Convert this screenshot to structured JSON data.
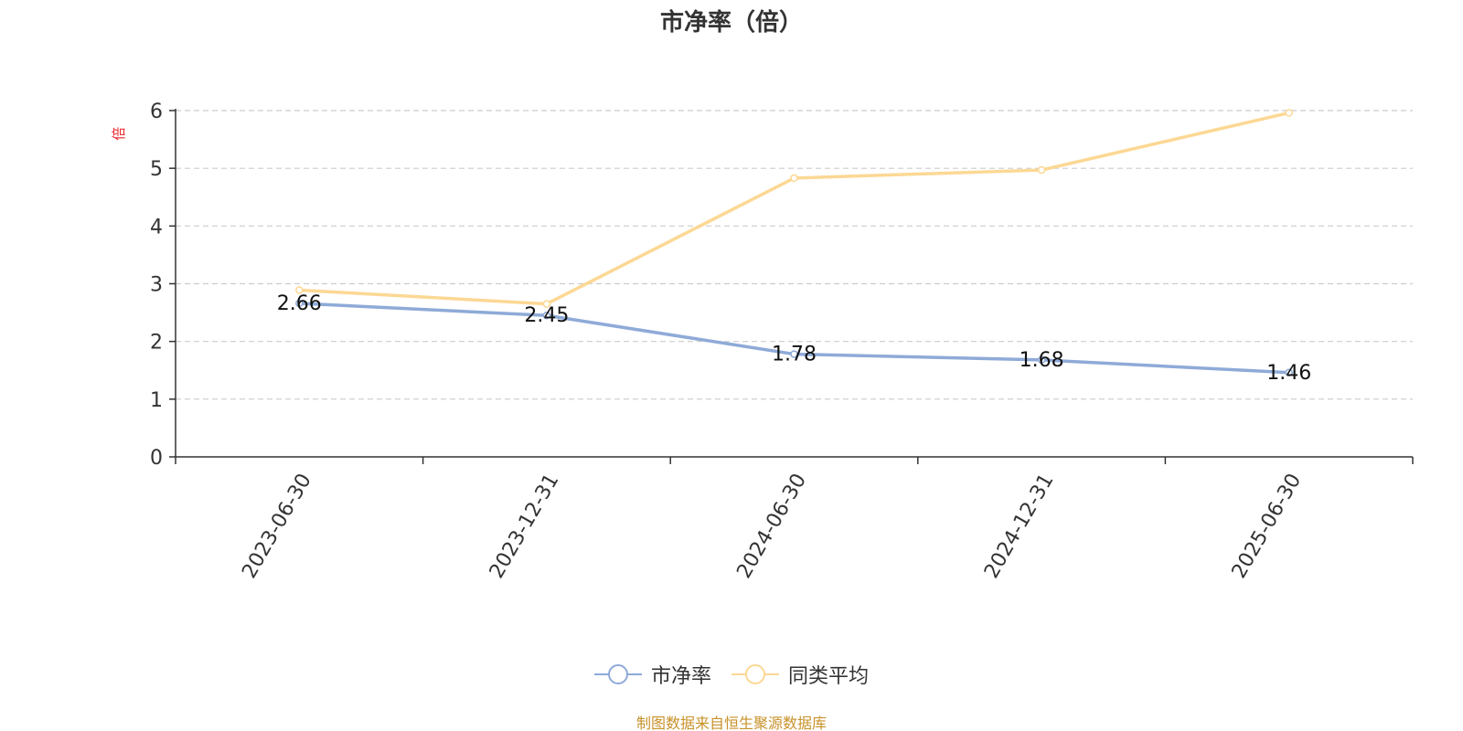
{
  "chart_data": {
    "type": "line",
    "title": "市净率（倍）",
    "ylabel": "倍",
    "xlabel": "",
    "categories": [
      "2023-06-30",
      "2023-12-31",
      "2024-06-30",
      "2024-12-31",
      "2025-06-30"
    ],
    "ylim": [
      0,
      6
    ],
    "yticks": [
      0,
      1,
      2,
      3,
      4,
      5,
      6
    ],
    "grid": true,
    "legend_position": "bottom-center",
    "series": [
      {
        "name": "市净率",
        "values": [
          2.66,
          2.45,
          1.78,
          1.68,
          1.46
        ],
        "color": "#8eaad8",
        "data_labels": [
          "2.66",
          "2.45",
          "1.78",
          "1.68",
          "1.46"
        ]
      },
      {
        "name": "同类平均",
        "values": [
          2.89,
          2.65,
          4.83,
          4.97,
          5.96
        ],
        "color": "#fcd894"
      }
    ]
  },
  "footer": {
    "source_text": "制图数据来自恒生聚源数据库",
    "source_color": "#c8922a"
  },
  "ylabel_color": "#e8262a"
}
